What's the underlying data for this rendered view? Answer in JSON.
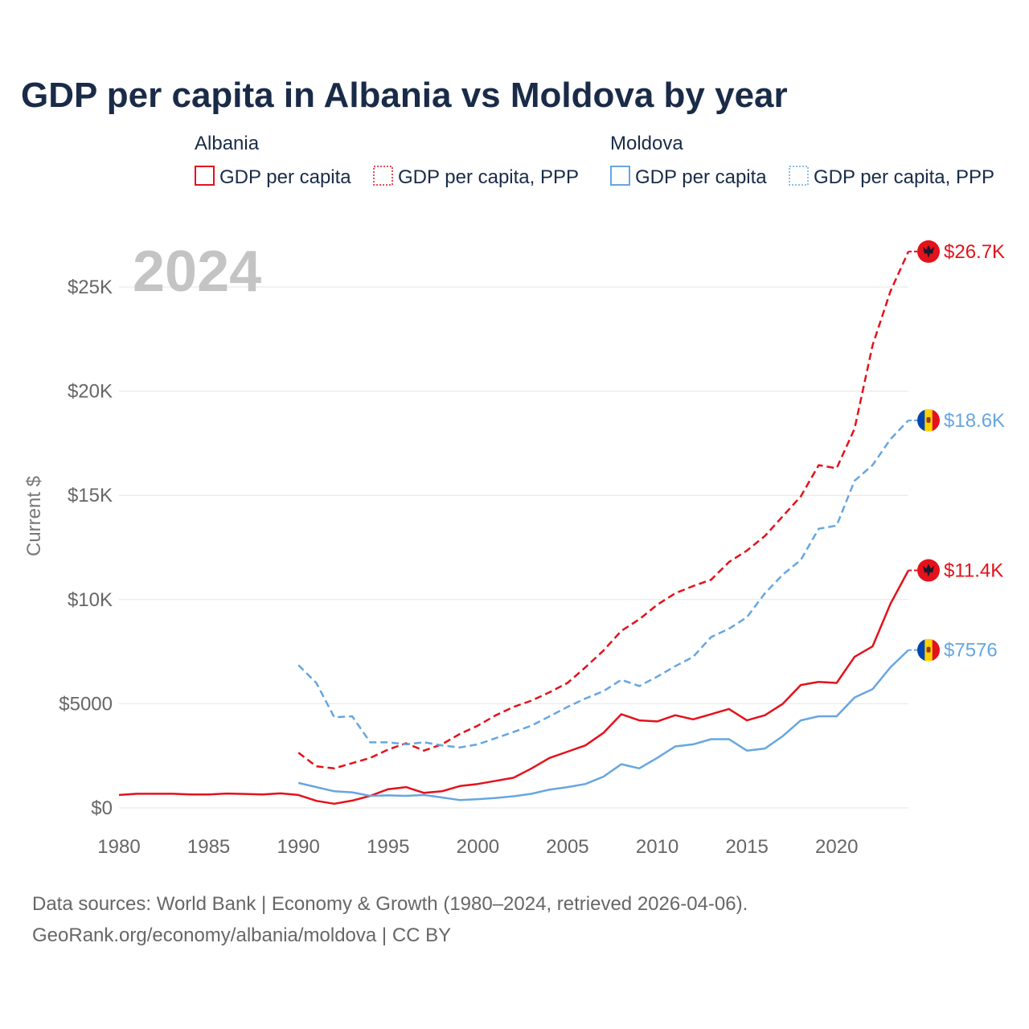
{
  "chart_data": {
    "type": "line",
    "title": "GDP per capita in Albania vs Moldova by year",
    "ylabel": "Current $",
    "xlabel": "",
    "year_label": "2024",
    "xlim": [
      1980,
      2024
    ],
    "ylim": [
      0,
      27000
    ],
    "x_ticks": [
      1980,
      1985,
      1990,
      1995,
      2000,
      2005,
      2010,
      2015,
      2020
    ],
    "x_tick_labels": [
      "1980",
      "1985",
      "1990",
      "1995",
      "2000",
      "2005",
      "2010",
      "2015",
      "2020"
    ],
    "y_ticks": [
      0,
      5000,
      10000,
      15000,
      20000,
      25000
    ],
    "y_tick_labels": [
      "$0",
      "$5000",
      "$10K",
      "$15K",
      "$20K",
      "$25K"
    ],
    "legend": [
      {
        "group": "Albania",
        "entries": [
          {
            "label": "GDP per capita",
            "series": "albania_gdp"
          },
          {
            "label": "GDP per capita, PPP",
            "series": "albania_ppp"
          }
        ]
      },
      {
        "group": "Moldova",
        "entries": [
          {
            "label": "GDP per capita",
            "series": "moldova_gdp"
          },
          {
            "label": "GDP per capita, PPP",
            "series": "moldova_ppp"
          }
        ]
      }
    ],
    "series": [
      {
        "id": "albania_ppp",
        "name": "Albania GDP per capita, PPP",
        "color": "#e3121b",
        "dash": true,
        "x": [
          1990,
          1991,
          1992,
          1993,
          1994,
          1995,
          1996,
          1997,
          1998,
          1999,
          2000,
          2001,
          2002,
          2003,
          2004,
          2005,
          2006,
          2007,
          2008,
          2009,
          2010,
          2011,
          2012,
          2013,
          2014,
          2015,
          2016,
          2017,
          2018,
          2019,
          2020,
          2021,
          2022,
          2023,
          2024
        ],
        "values": [
          2650,
          2000,
          1900,
          2150,
          2400,
          2800,
          3100,
          2750,
          3050,
          3550,
          3950,
          4450,
          4850,
          5150,
          5550,
          6000,
          6750,
          7550,
          8500,
          9050,
          9750,
          10300,
          10650,
          10950,
          11800,
          12350,
          13050,
          14000,
          14950,
          16450,
          16300,
          18200,
          22200,
          24800,
          26700
        ],
        "end_label": "$26.7K",
        "flag": "albania"
      },
      {
        "id": "moldova_ppp",
        "name": "Moldova GDP per capita, PPP",
        "color": "#66a6e0",
        "dash": true,
        "x": [
          1990,
          1991,
          1992,
          1993,
          1994,
          1995,
          1996,
          1997,
          1998,
          1999,
          2000,
          2001,
          2002,
          2003,
          2004,
          2005,
          2006,
          2007,
          2008,
          2009,
          2010,
          2011,
          2012,
          2013,
          2014,
          2015,
          2016,
          2017,
          2018,
          2019,
          2020,
          2021,
          2022,
          2023,
          2024
        ],
        "values": [
          6850,
          6000,
          4350,
          4400,
          3150,
          3150,
          3050,
          3150,
          3000,
          2900,
          3050,
          3350,
          3650,
          3950,
          4400,
          4850,
          5250,
          5600,
          6150,
          5850,
          6300,
          6800,
          7250,
          8200,
          8600,
          9150,
          10300,
          11200,
          11900,
          13400,
          13550,
          15700,
          16450,
          17700,
          18600
        ],
        "end_label": "$18.6K",
        "flag": "moldova"
      },
      {
        "id": "albania_gdp",
        "name": "Albania GDP per capita",
        "color": "#e3121b",
        "dash": false,
        "x": [
          1980,
          1981,
          1982,
          1983,
          1984,
          1985,
          1986,
          1987,
          1988,
          1989,
          1990,
          1991,
          1992,
          1993,
          1994,
          1995,
          1996,
          1997,
          1998,
          1999,
          2000,
          2001,
          2002,
          2003,
          2004,
          2005,
          2006,
          2007,
          2008,
          2009,
          2010,
          2011,
          2012,
          2013,
          2014,
          2015,
          2016,
          2017,
          2018,
          2019,
          2020,
          2021,
          2022,
          2023,
          2024
        ],
        "values": [
          620,
          680,
          680,
          680,
          650,
          650,
          690,
          670,
          650,
          700,
          620,
          340,
          200,
          350,
          580,
          900,
          1000,
          720,
          800,
          1050,
          1150,
          1300,
          1450,
          1900,
          2400,
          2700,
          3000,
          3600,
          4500,
          4200,
          4150,
          4450,
          4250,
          4500,
          4750,
          4200,
          4450,
          5000,
          5900,
          6050,
          6000,
          7250,
          7750,
          9800,
          11400
        ],
        "end_label": "$11.4K",
        "flag": "albania"
      },
      {
        "id": "moldova_gdp",
        "name": "Moldova GDP per capita",
        "color": "#66a6e0",
        "dash": false,
        "x": [
          1990,
          1991,
          1992,
          1993,
          1994,
          1995,
          1996,
          1997,
          1998,
          1999,
          2000,
          2001,
          2002,
          2003,
          2004,
          2005,
          2006,
          2007,
          2008,
          2009,
          2010,
          2011,
          2012,
          2013,
          2014,
          2015,
          2016,
          2017,
          2018,
          2019,
          2020,
          2021,
          2022,
          2023,
          2024
        ],
        "values": [
          1200,
          1000,
          800,
          750,
          580,
          600,
          580,
          620,
          500,
          380,
          420,
          480,
          560,
          680,
          880,
          1000,
          1150,
          1500,
          2100,
          1900,
          2400,
          2950,
          3050,
          3300,
          3300,
          2750,
          2850,
          3450,
          4200,
          4400,
          4400,
          5300,
          5700,
          6750,
          7576
        ],
        "end_label": "$7576",
        "flag": "moldova"
      }
    ]
  },
  "footer": {
    "line1": "Data sources: World Bank | Economy & Growth (1980–2024, retrieved 2026-04-06).",
    "line2": "GeoRank.org/economy/albania/moldova | CC BY"
  },
  "colors": {
    "albania": "#e3121b",
    "moldova": "#66a6e0",
    "moldova_blue": "#0046ae",
    "moldova_yellow": "#ffd200",
    "title": "#1a2b48"
  }
}
